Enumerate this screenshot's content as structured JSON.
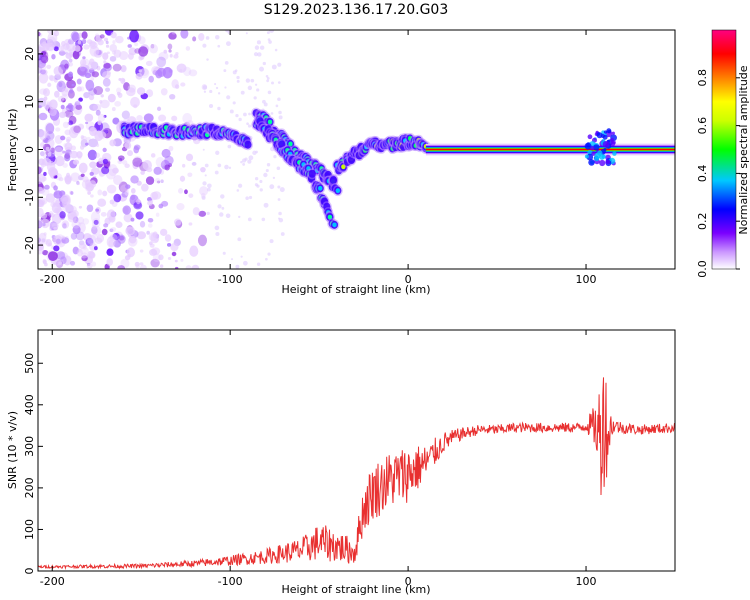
{
  "title": "S129.2023.136.17.20.G03",
  "chart_data": [
    {
      "type": "heatmap",
      "xlabel": "Height of straight line (km)",
      "ylabel": "Frequency (Hz)",
      "xlim": [
        -208,
        150
      ],
      "ylim": [
        -25,
        25
      ],
      "xticks": [
        -200,
        -100,
        0,
        100
      ],
      "yticks": [
        -20,
        -10,
        0,
        10,
        20
      ],
      "colorbar": {
        "label": "Normalized spectral amplitude",
        "range": [
          0.0,
          1.0
        ],
        "ticks": [
          0.0,
          0.2,
          0.4,
          0.6,
          0.8
        ],
        "tick_labels": [
          "0.0",
          "0.2",
          "0.4",
          "0.6",
          "0.8"
        ],
        "colors": [
          "#ffffff",
          "#7a00ff",
          "#0000ff",
          "#00c8ff",
          "#00ff00",
          "#ffff00",
          "#ff8000",
          "#ff0000",
          "#ff0080"
        ]
      },
      "ridges": [
        {
          "x": [
            -160,
            -140,
            -120,
            -110,
            -100,
            -90
          ],
          "y": [
            4,
            4,
            3.5,
            4,
            3,
            1
          ]
        },
        {
          "x": [
            -85,
            -75,
            -65,
            -55,
            -45,
            -40
          ],
          "y": [
            8,
            4,
            0,
            -3,
            -6,
            -8
          ]
        },
        {
          "x": [
            -85,
            -75,
            -65,
            -55,
            -48,
            -42
          ],
          "y": [
            6,
            2,
            -2,
            -5,
            -10,
            -16
          ]
        },
        {
          "x": [
            -40,
            -30,
            -20,
            -10,
            0,
            10
          ],
          "y": [
            -4,
            -1,
            1,
            1,
            1.5,
            1
          ]
        },
        {
          "x": [
            10,
            50,
            100,
            110,
            120,
            150
          ],
          "y": [
            0,
            0,
            0,
            0,
            0,
            0
          ]
        }
      ]
    },
    {
      "type": "line",
      "xlabel": "Height of straight line (km)",
      "ylabel": "SNR (10 * v/v)",
      "xlim": [
        -208,
        150
      ],
      "ylim": [
        0,
        580
      ],
      "xticks": [
        -200,
        -100,
        0,
        100
      ],
      "yticks": [
        0,
        100,
        200,
        300,
        400,
        500
      ],
      "grid": false,
      "series": [
        {
          "color": "#e83030",
          "x": [
            -208,
            -150,
            -120,
            -100,
            -80,
            -60,
            -50,
            -40,
            -30,
            -25,
            -20,
            -10,
            0,
            10,
            20,
            30,
            40,
            50,
            60,
            80,
            95,
            100,
            105,
            108,
            110,
            112,
            115,
            120,
            130,
            150
          ],
          "y": [
            10,
            12,
            18,
            25,
            35,
            50,
            70,
            60,
            45,
            150,
            190,
            220,
            235,
            260,
            310,
            330,
            340,
            340,
            345,
            345,
            345,
            350,
            350,
            320,
            380,
            330,
            350,
            345,
            340,
            345
          ],
          "noise_amplitude": [
            3,
            5,
            8,
            12,
            18,
            30,
            45,
            40,
            30,
            60,
            70,
            70,
            70,
            45,
            25,
            15,
            12,
            12,
            12,
            12,
            12,
            15,
            50,
            150,
            180,
            100,
            20,
            15,
            12,
            12
          ]
        }
      ]
    }
  ]
}
